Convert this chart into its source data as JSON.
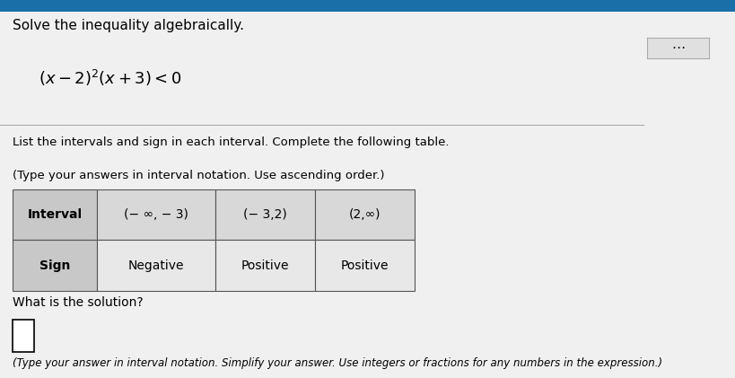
{
  "title_line1": "Solve the inequality algebraically.",
  "instruction_line1": "List the intervals and sign in each interval. Complete the following table.",
  "instruction_line2": "(Type your answers in interval notation. Use ascending order.)",
  "table_headers": [
    "Interval",
    "(− ∞, − 3)",
    "(− 3,2)",
    "(2,∞)"
  ],
  "table_row2_label": "Sign",
  "table_signs": [
    "Negative",
    "Positive",
    "Positive"
  ],
  "solution_label": "What is the solution?",
  "solution_note": "(Type your answer in interval notation. Simplify your answer. Use integers or fractions for any numbers in the expression.)",
  "bg_color": "#f0f0f0",
  "header_bg": "#c8c8c8",
  "interval_cell_bg": "#d8d8d8",
  "sign_cell_bg": "#e8e8e8",
  "table_border": "#555555",
  "top_bar_color": "#1a6fa8",
  "dots_button_color": "#e0e0e0"
}
